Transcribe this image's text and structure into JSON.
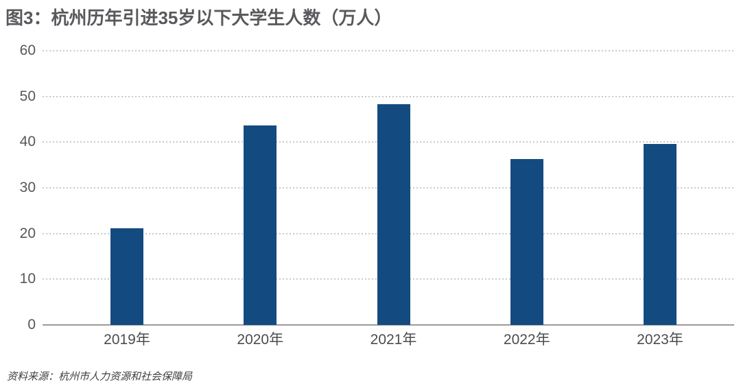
{
  "chart": {
    "title": "图3：杭州历年引进35岁以下大学生人数（万人）",
    "source": "资料来源：杭州市人力资源和社会保障局"
  },
  "chart_data": {
    "type": "bar",
    "title": "图3：杭州历年引进35岁以下大学生人数（万人）",
    "categories": [
      "2019年",
      "2020年",
      "2021年",
      "2022年",
      "2023年"
    ],
    "values": [
      21.2,
      43.6,
      48.3,
      36.3,
      39.6
    ],
    "xlabel": "",
    "ylabel": "",
    "ylim": [
      0,
      60
    ],
    "yticks": [
      0,
      10,
      20,
      30,
      40,
      50,
      60
    ],
    "grid": "horizontal-dotted",
    "legend": "none",
    "source": "资料来源：杭州市人力资源和社会保障局"
  },
  "colors": {
    "bar": "#134b80",
    "title": "#58595d",
    "grid": "#c9c9c9",
    "axis_line": "#9a9a9a",
    "tick_label": "#55575a",
    "source_text": "#3e3e40"
  }
}
